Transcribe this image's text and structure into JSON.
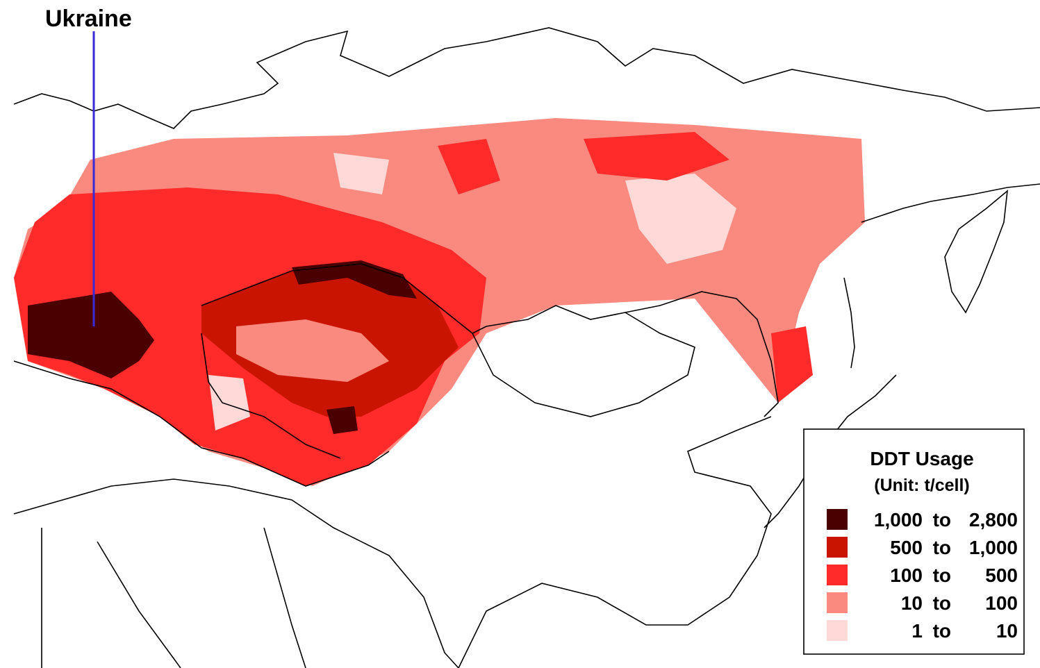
{
  "label": {
    "text": "Ukraine",
    "color": "#3b2bd6"
  },
  "legend": {
    "title": "DDT Usage",
    "unit": "(Unit: t/cell)",
    "items": [
      {
        "low": "1,000",
        "sep": "to",
        "high": "2,800",
        "color": "#4a0000"
      },
      {
        "low": "500",
        "sep": "to",
        "high": "1,000",
        "color": "#c81400"
      },
      {
        "low": "100",
        "sep": "to",
        "high": "500",
        "color": "#ff2a2a"
      },
      {
        "low": "10",
        "sep": "to",
        "high": "100",
        "color": "#fa8a80"
      },
      {
        "low": "1",
        "sep": "to",
        "high": "10",
        "color": "#ffd8d8"
      }
    ]
  }
}
